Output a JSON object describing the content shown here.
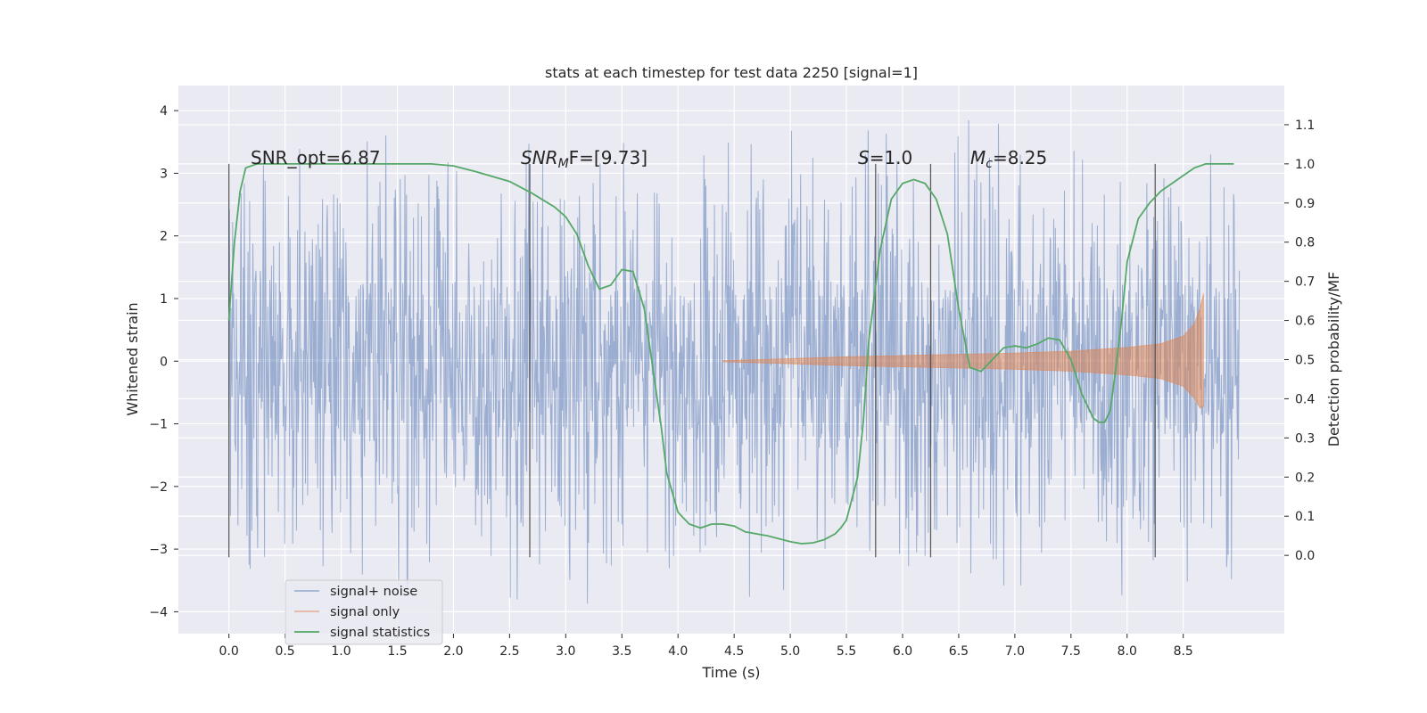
{
  "chart_data": {
    "type": "line",
    "title": "stats at each timestep for test data 2250 [signal=1]",
    "xlabel": "Time (s)",
    "ylabel": "Whitened strain",
    "ylabel_right": "Detection probability/MF",
    "xlim": [
      -0.45,
      9.4
    ],
    "ylim": [
      -4.35,
      4.4
    ],
    "ylim_right": [
      -0.2,
      1.2
    ],
    "x_ticks": [
      "0.0",
      "0.5",
      "1.0",
      "1.5",
      "2.0",
      "2.5",
      "3.0",
      "3.5",
      "4.0",
      "4.5",
      "5.0",
      "5.5",
      "6.0",
      "6.5",
      "7.0",
      "7.5",
      "8.0",
      "8.5"
    ],
    "y_ticks": [
      "−4",
      "−3",
      "−2",
      "−1",
      "0",
      "1",
      "2",
      "3",
      "4"
    ],
    "y_ticks_right": [
      "0.0",
      "0.1",
      "0.2",
      "0.3",
      "0.4",
      "0.5",
      "0.6",
      "0.7",
      "0.8",
      "0.9",
      "1.0",
      "1.1"
    ],
    "grid": true,
    "legend_position": "lower-left",
    "series": [
      {
        "name": "signal+ noise",
        "color": "#4c72b0",
        "axis": "left",
        "x_range": [
          0.0,
          9.0
        ],
        "amplitude_bulk": 1.3,
        "amplitude_peak": 4.0
      },
      {
        "name": "signal only",
        "color": "#dd8452",
        "axis": "left",
        "x_range": [
          4.4,
          8.68
        ],
        "envelope": {
          "x": [
            4.4,
            5.0,
            5.5,
            6.0,
            6.5,
            7.0,
            7.5,
            8.0,
            8.3,
            8.5,
            8.6,
            8.65,
            8.68
          ],
          "upper": [
            0.01,
            0.04,
            0.07,
            0.09,
            0.11,
            0.13,
            0.16,
            0.22,
            0.28,
            0.4,
            0.6,
            0.85,
            1.08
          ],
          "lower": [
            -0.01,
            -0.04,
            -0.07,
            -0.09,
            -0.11,
            -0.13,
            -0.16,
            -0.22,
            -0.28,
            -0.4,
            -0.6,
            -0.75,
            -0.72
          ]
        }
      },
      {
        "name": "signal statistics",
        "color": "#55a868",
        "axis": "right",
        "x": [
          0.0,
          0.05,
          0.1,
          0.15,
          0.25,
          0.4,
          0.6,
          1.0,
          1.5,
          1.8,
          2.0,
          2.2,
          2.5,
          2.7,
          2.9,
          3.0,
          3.1,
          3.2,
          3.3,
          3.4,
          3.5,
          3.6,
          3.7,
          3.75,
          3.8,
          3.85,
          3.9,
          4.0,
          4.1,
          4.2,
          4.3,
          4.4,
          4.5,
          4.6,
          4.8,
          5.0,
          5.1,
          5.2,
          5.3,
          5.4,
          5.45,
          5.5,
          5.6,
          5.65,
          5.7,
          5.8,
          5.9,
          6.0,
          6.1,
          6.2,
          6.3,
          6.4,
          6.5,
          6.6,
          6.7,
          6.8,
          6.9,
          7.0,
          7.1,
          7.2,
          7.3,
          7.4,
          7.5,
          7.6,
          7.7,
          7.75,
          7.8,
          7.85,
          7.9,
          7.95,
          8.0,
          8.1,
          8.2,
          8.3,
          8.5,
          8.6,
          8.7,
          8.8,
          8.95
        ],
        "values": [
          0.6,
          0.8,
          0.93,
          0.99,
          1.0,
          1.0,
          1.0,
          1.0,
          1.0,
          1.0,
          0.995,
          0.98,
          0.955,
          0.925,
          0.89,
          0.865,
          0.82,
          0.74,
          0.68,
          0.69,
          0.73,
          0.725,
          0.63,
          0.53,
          0.43,
          0.33,
          0.21,
          0.11,
          0.08,
          0.07,
          0.08,
          0.08,
          0.075,
          0.06,
          0.05,
          0.035,
          0.03,
          0.032,
          0.04,
          0.055,
          0.07,
          0.09,
          0.2,
          0.34,
          0.55,
          0.78,
          0.91,
          0.95,
          0.96,
          0.95,
          0.91,
          0.82,
          0.63,
          0.48,
          0.47,
          0.5,
          0.53,
          0.535,
          0.53,
          0.54,
          0.555,
          0.55,
          0.5,
          0.41,
          0.35,
          0.34,
          0.34,
          0.37,
          0.48,
          0.6,
          0.75,
          0.86,
          0.9,
          0.93,
          0.97,
          0.99,
          1.0,
          1.0,
          1.0
        ]
      }
    ],
    "markers": [
      0.0,
      2.68,
      5.76,
      6.25,
      8.25
    ],
    "annotations": {
      "snr_opt": "SNR_opt=6.87",
      "snr_mf_sym": "SNR",
      "snr_mf_sub": "M",
      "snr_mf_rest": "F=[9.73]",
      "s_sym": "S",
      "s_rest": "=1.0",
      "mc_sym": "M",
      "mc_sub": "c",
      "mc_rest": "=8.25"
    },
    "legend": [
      "signal+ noise",
      "signal only",
      "signal statistics"
    ]
  }
}
